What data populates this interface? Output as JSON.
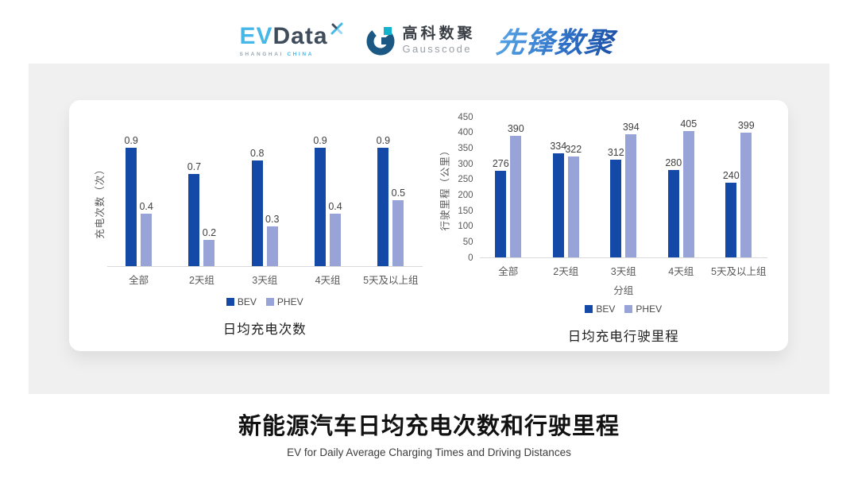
{
  "header": {
    "logos": {
      "evdata": {
        "ev": "EV",
        "data": "Data",
        "sub_left": "SHANGHAI",
        "sub_right": "CHINA"
      },
      "gausscode": {
        "cn": "高科数聚",
        "en": "Gausscode"
      },
      "xianfeng": {
        "text": "先锋数聚"
      }
    }
  },
  "colors": {
    "bev": "#1449A8",
    "phev": "#98A3D7",
    "axis_line": "#D9D9D9",
    "panel_bg": "#F0F0F0",
    "evdata_cyan": "#45B8E8",
    "evdata_slate": "#3E4C5C"
  },
  "chart_data": [
    {
      "type": "bar",
      "title": "日均充电次数",
      "ylabel": "充电次数（次）",
      "xlabel": "",
      "categories": [
        "全部",
        "2天组",
        "3天组",
        "4天组",
        "5天及以上组"
      ],
      "series": [
        {
          "name": "BEV",
          "color": "#1449A8",
          "values": [
            0.9,
            0.7,
            0.8,
            0.9,
            0.9
          ]
        },
        {
          "name": "PHEV",
          "color": "#98A3D7",
          "values": [
            0.4,
            0.2,
            0.3,
            0.4,
            0.5
          ]
        }
      ],
      "ylim": [
        0,
        1.0
      ],
      "y_ticks": [],
      "value_decimals": 1,
      "grid": false,
      "legend_position": "bottom"
    },
    {
      "type": "bar",
      "title": "日均充电行驶里程",
      "ylabel": "行驶里程（公里）",
      "xlabel": "分组",
      "categories": [
        "全部",
        "2天组",
        "3天组",
        "4天组",
        "5天及以上组"
      ],
      "series": [
        {
          "name": "BEV",
          "color": "#1449A8",
          "values": [
            276,
            334,
            312,
            280,
            240
          ]
        },
        {
          "name": "PHEV",
          "color": "#98A3D7",
          "values": [
            390,
            322,
            394,
            405,
            399
          ]
        }
      ],
      "ylim": [
        0,
        450
      ],
      "y_ticks": [
        0,
        50,
        100,
        150,
        200,
        250,
        300,
        350,
        400,
        450
      ],
      "value_decimals": 0,
      "grid": false,
      "legend_position": "bottom"
    }
  ],
  "footer": {
    "title": "新能源汽车日均充电次数和行驶里程",
    "subtitle": "EV for Daily Average Charging Times and Driving Distances"
  }
}
